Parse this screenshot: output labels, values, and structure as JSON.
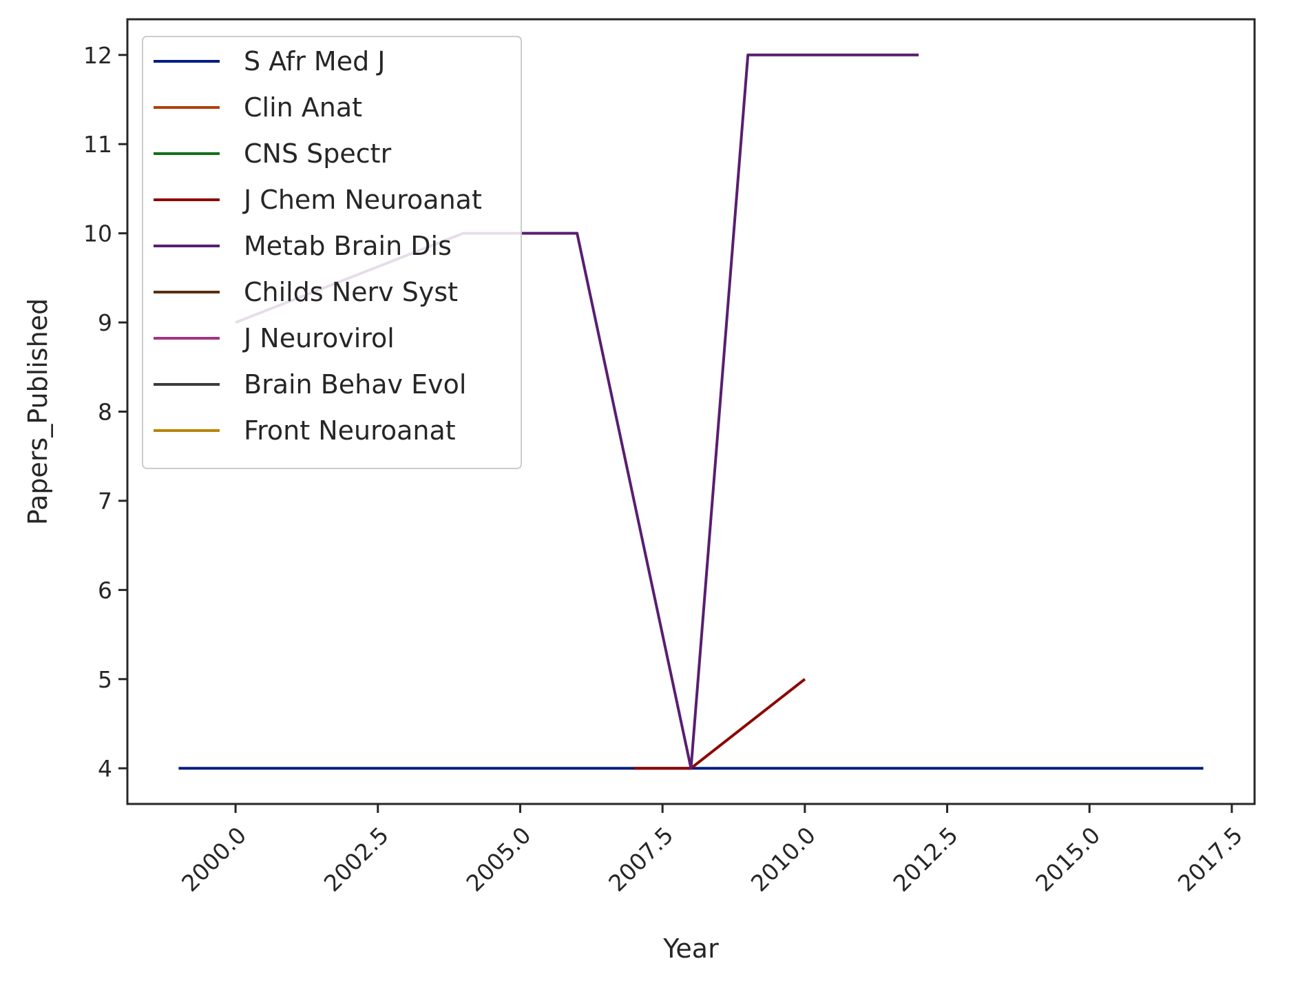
{
  "chart_data": {
    "type": "line",
    "title": "",
    "xlabel": "Year",
    "ylabel": "Papers_Published",
    "xlim": [
      1998.1,
      2017.9
    ],
    "ylim": [
      3.6,
      12.4
    ],
    "x_ticks": [
      2000.0,
      2002.5,
      2005.0,
      2007.5,
      2010.0,
      2012.5,
      2015.0,
      2017.5
    ],
    "x_tick_labels": [
      "2000.0",
      "2002.5",
      "2005.0",
      "2007.5",
      "2010.0",
      "2012.5",
      "2015.0",
      "2017.5"
    ],
    "y_ticks": [
      4,
      5,
      6,
      7,
      8,
      9,
      10,
      11,
      12
    ],
    "y_tick_labels": [
      "4",
      "5",
      "6",
      "7",
      "8",
      "9",
      "10",
      "11",
      "12"
    ],
    "grid": false,
    "legend_position": "top-left",
    "series": [
      {
        "name": "S Afr Med J",
        "color": "#001c7f",
        "x": [
          1999,
          2017
        ],
        "y": [
          4,
          4
        ]
      },
      {
        "name": "Clin Anat",
        "color": "#b1400d",
        "x": [],
        "y": []
      },
      {
        "name": "CNS Spectr",
        "color": "#12711c",
        "x": [],
        "y": []
      },
      {
        "name": "J Chem Neuroanat",
        "color": "#8c0800",
        "x": [
          2007,
          2008,
          2010
        ],
        "y": [
          4,
          4,
          5
        ]
      },
      {
        "name": "Metab Brain Dis",
        "color": "#591e71",
        "x": [
          2000,
          2004,
          2006,
          2008,
          2009,
          2012
        ],
        "y": [
          9,
          10,
          10,
          4,
          12,
          12
        ]
      },
      {
        "name": "Childs Nerv Syst",
        "color": "#592f0d",
        "x": [],
        "y": []
      },
      {
        "name": "J Neurovirol",
        "color": "#a23582",
        "x": [],
        "y": []
      },
      {
        "name": "Brain Behav Evol",
        "color": "#3c3c3c",
        "x": [],
        "y": []
      },
      {
        "name": "Front Neuroanat",
        "color": "#b8850a",
        "x": [],
        "y": []
      }
    ]
  }
}
